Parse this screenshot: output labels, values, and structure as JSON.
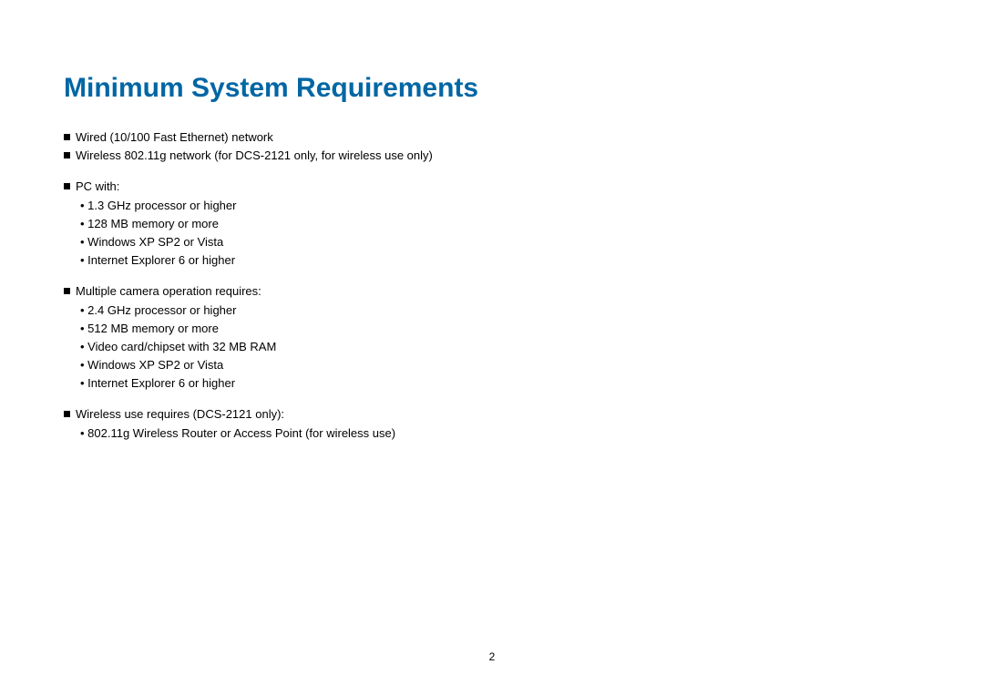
{
  "title": "Minimum System Requirements",
  "sections": [
    {
      "mainItems": [
        "Wired (10/100 Fast Ethernet) network",
        "Wireless 802.11g network (for DCS-2121 only, for wireless use only)"
      ],
      "subItems": []
    },
    {
      "mainItems": [
        "PC with:"
      ],
      "subItems": [
        "1.3 GHz processor or higher",
        "128 MB memory or more",
        "Windows XP SP2 or Vista",
        "Internet Explorer 6 or higher"
      ]
    },
    {
      "mainItems": [
        "Multiple camera operation requires:"
      ],
      "subItems": [
        "2.4 GHz processor or higher",
        "512 MB memory or more",
        "Video card/chipset with 32 MB RAM",
        "Windows XP SP2 or Vista",
        "Internet Explorer 6 or higher"
      ]
    },
    {
      "mainItems": [
        "Wireless use requires (DCS-2121 only):"
      ],
      "subItems": [
        "802.11g Wireless Router or Access Point (for wireless use)"
      ]
    }
  ],
  "pageNumber": "2",
  "colors": {
    "title": "#0066a4",
    "text": "#000000",
    "background": "#ffffff"
  },
  "typography": {
    "titleFontSize": 30,
    "bodyFontSize": 13,
    "fontFamily": "Arial"
  }
}
